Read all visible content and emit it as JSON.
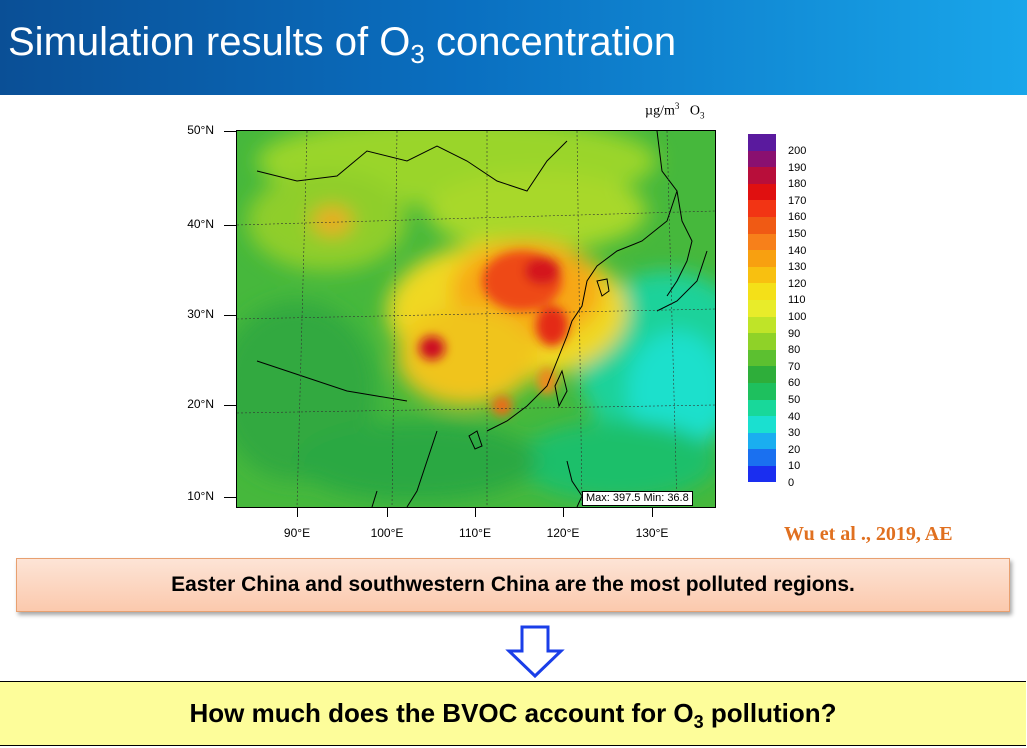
{
  "header": {
    "title_main": "Simulation results of O",
    "title_sub": "3",
    "title_end": " concentration"
  },
  "units": {
    "unit_prefix": "µg/m",
    "unit_exp": "3",
    "species": "O",
    "species_sub": "3"
  },
  "map": {
    "stats": "Max: 397.5   Min: 36.8",
    "lat_labels": [
      "50°N",
      "40°N",
      "30°N",
      "20°N",
      "10°N"
    ],
    "lon_labels": [
      "90°E",
      "100°E",
      "110°E",
      "120°E",
      "130°E"
    ]
  },
  "colorbar": {
    "labels": [
      "200",
      "190",
      "180",
      "170",
      "160",
      "150",
      "140",
      "130",
      "120",
      "110",
      "100",
      "90",
      "80",
      "70",
      "60",
      "50",
      "40",
      "30",
      "20",
      "10",
      "0"
    ],
    "colors": [
      "#5a1a9e",
      "#8a1070",
      "#b80e3a",
      "#e01010",
      "#f23414",
      "#f05a14",
      "#f7801a",
      "#f8a010",
      "#f8c010",
      "#f4e018",
      "#e8ec2a",
      "#bfe428",
      "#8fd228",
      "#5cc030",
      "#2eae3a",
      "#1ec05e",
      "#18d89a",
      "#1ae0d0",
      "#1aaef0",
      "#1a70f0",
      "#1a2ef0"
    ]
  },
  "citation": "Wu et al ., 2019, AE",
  "note": "Easter China and southwestern China are the most polluted regions.",
  "question": {
    "before": "How much does the BVOC account for O",
    "sub": "3",
    "after": " pollution?"
  }
}
